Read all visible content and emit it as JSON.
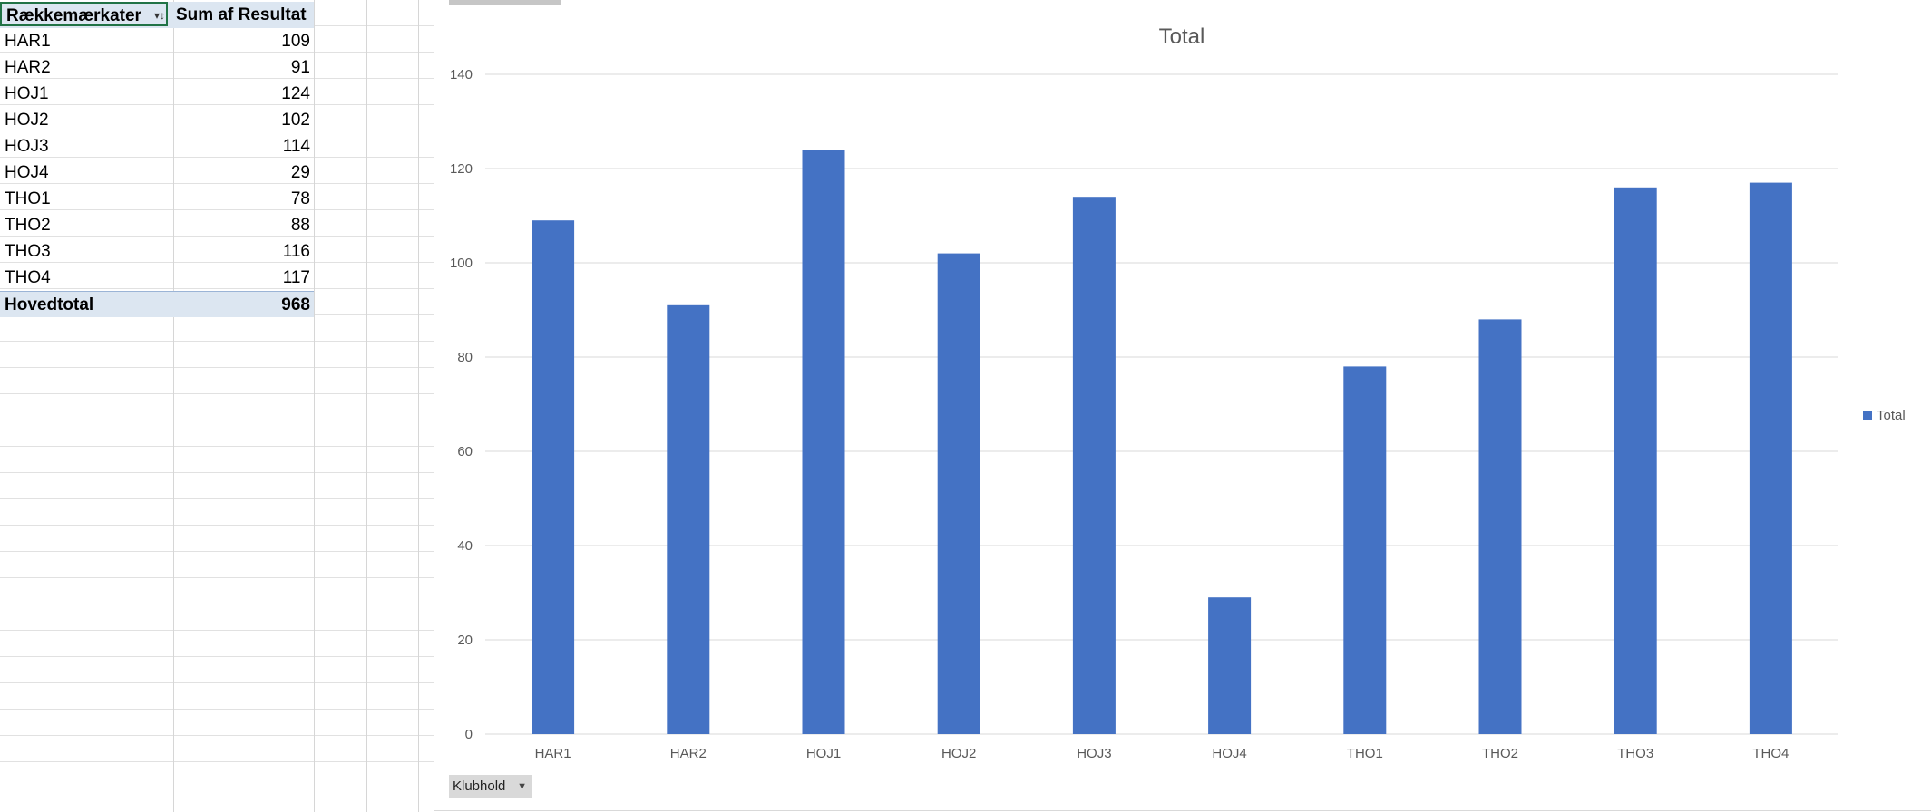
{
  "pivot": {
    "header": {
      "row_label": "Rækkemærkater",
      "value_label": "Sum af Resultat"
    },
    "filter_glyph": "▾↕",
    "rows": [
      {
        "label": "HAR1",
        "value": "109"
      },
      {
        "label": "HAR2",
        "value": "91"
      },
      {
        "label": "HOJ1",
        "value": "124"
      },
      {
        "label": "HOJ2",
        "value": "102"
      },
      {
        "label": "HOJ3",
        "value": "114"
      },
      {
        "label": "HOJ4",
        "value": "29"
      },
      {
        "label": "THO1",
        "value": "78"
      },
      {
        "label": "THO2",
        "value": "88"
      },
      {
        "label": "THO3",
        "value": "116"
      },
      {
        "label": "THO4",
        "value": "117"
      }
    ],
    "total": {
      "label": "Hovedtotal",
      "value": "968"
    }
  },
  "field_button": {
    "label": "Klubhold",
    "arrow": "▼"
  },
  "chart_data": {
    "type": "bar",
    "title": "Total",
    "xlabel": "",
    "ylabel": "",
    "categories": [
      "HAR1",
      "HAR2",
      "HOJ1",
      "HOJ2",
      "HOJ3",
      "HOJ4",
      "THO1",
      "THO2",
      "THO3",
      "THO4"
    ],
    "series": [
      {
        "name": "Total",
        "values": [
          109,
          91,
          124,
          102,
          114,
          29,
          78,
          88,
          116,
          117
        ],
        "color": "#4472c4"
      }
    ],
    "ylim": [
      0,
      140
    ],
    "yticks": [
      0,
      20,
      40,
      60,
      80,
      100,
      120,
      140
    ],
    "grid": true,
    "legend": "right"
  },
  "colors": {
    "bar": "#4472c4",
    "grid": "#d9d9d9",
    "axis_text": "#595959",
    "title_text": "#595959",
    "pivot_header_bg": "#dce6f1",
    "active_cell_border": "#217346"
  }
}
